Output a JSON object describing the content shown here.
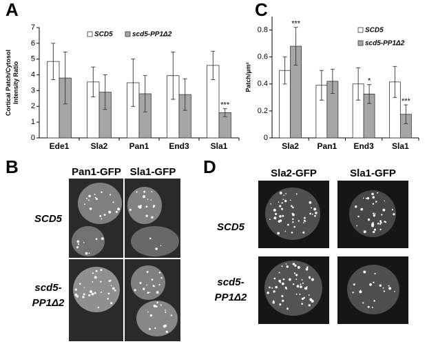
{
  "chart_data": [
    {
      "type": "bar",
      "panel": "A",
      "ylabel": [
        "Cortical Patch/Cytosol",
        "Intensity Ratio"
      ],
      "categories": [
        "Ede1",
        "Sla2",
        "Pan1",
        "End3",
        "Sla1"
      ],
      "series": [
        {
          "name": "SCD5",
          "color": "#ffffff",
          "values": [
            4.85,
            3.55,
            3.5,
            3.95,
            4.6
          ],
          "errors": [
            1.15,
            0.95,
            1.5,
            1.5,
            0.9
          ],
          "annotations": [
            null,
            null,
            null,
            null,
            null
          ]
        },
        {
          "name": "scd5-PP1Δ2",
          "color": "#a6a6a6",
          "values": [
            3.8,
            2.9,
            2.8,
            2.75,
            1.6
          ],
          "errors": [
            1.65,
            1.1,
            1.15,
            1.0,
            0.25
          ],
          "annotations": [
            null,
            null,
            null,
            null,
            "***"
          ]
        }
      ],
      "ylim": [
        0,
        7
      ],
      "yticks": [
        0,
        1,
        2,
        3,
        4,
        5,
        6,
        7
      ],
      "legend": "top"
    },
    {
      "type": "bar",
      "panel": "C",
      "ylabel": [
        "Patch/µm²"
      ],
      "categories": [
        "Sla2",
        "Pan1",
        "End3",
        "Sla1"
      ],
      "series": [
        {
          "name": "SCD5",
          "color": "#ffffff",
          "values": [
            0.5,
            0.39,
            0.4,
            0.415
          ],
          "errors": [
            0.1,
            0.11,
            0.12,
            0.115
          ],
          "annotations": [
            null,
            null,
            null,
            null
          ]
        },
        {
          "name": "scd5-PP1Δ2",
          "color": "#a6a6a6",
          "values": [
            0.68,
            0.42,
            0.325,
            0.175
          ],
          "errors": [
            0.14,
            0.09,
            0.07,
            0.07
          ],
          "annotations": [
            "***",
            null,
            "*",
            "***"
          ]
        }
      ],
      "ylim": [
        0,
        0.9
      ],
      "yticks": [
        0,
        0.2,
        0.4,
        0.6,
        0.8
      ],
      "legend": "right"
    }
  ],
  "panel_b": {
    "letter": "B",
    "columns": [
      "Pan1-GFP",
      "Sla1-GFP"
    ],
    "rows": [
      [
        "SCD5"
      ],
      [
        "scd5-",
        "PP1Δ2"
      ]
    ]
  },
  "panel_d": {
    "letter": "D",
    "columns": [
      "Sla2-GFP",
      "Sla1-GFP"
    ],
    "rows": [
      [
        "SCD5"
      ],
      [
        "scd5-",
        "PP1Δ2"
      ]
    ]
  }
}
